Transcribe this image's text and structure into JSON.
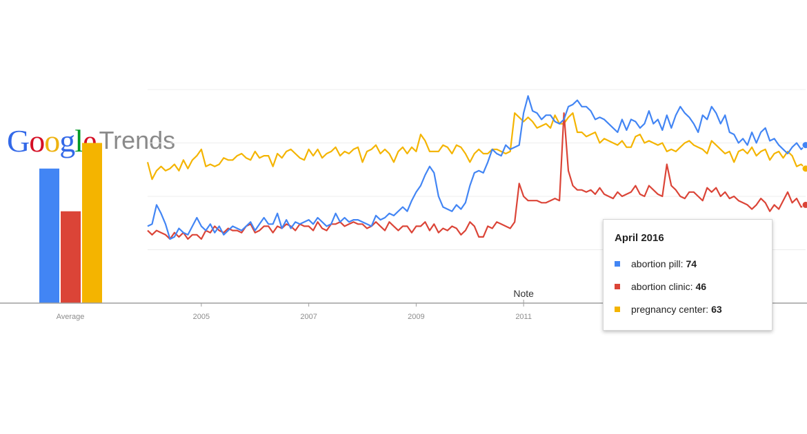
{
  "logo": {
    "letters": [
      {
        "ch": "G",
        "color": "#3369e8"
      },
      {
        "ch": "o",
        "color": "#d50f25"
      },
      {
        "ch": "o",
        "color": "#eeb211"
      },
      {
        "ch": "g",
        "color": "#3369e8"
      },
      {
        "ch": "l",
        "color": "#009925"
      },
      {
        "ch": "e",
        "color": "#d50f25"
      }
    ],
    "word": "Google",
    "product": "Trends"
  },
  "chart_data": {
    "type": "line",
    "x": [
      2004.0,
      2004.0833,
      2004.1667,
      2004.25,
      2004.3333,
      2004.4167,
      2004.5,
      2004.5833,
      2004.6667,
      2004.75,
      2004.8333,
      2004.9167,
      2005.0,
      2005.0833,
      2005.1667,
      2005.25,
      2005.3333,
      2005.4167,
      2005.5,
      2005.5833,
      2005.6667,
      2005.75,
      2005.8333,
      2005.9167,
      2006.0,
      2006.0833,
      2006.1667,
      2006.25,
      2006.3333,
      2006.4167,
      2006.5,
      2006.5833,
      2006.6667,
      2006.75,
      2006.8333,
      2006.9167,
      2007.0,
      2007.0833,
      2007.1667,
      2007.25,
      2007.3333,
      2007.4167,
      2007.5,
      2007.5833,
      2007.6667,
      2007.75,
      2007.8333,
      2007.9167,
      2008.0,
      2008.0833,
      2008.1667,
      2008.25,
      2008.3333,
      2008.4167,
      2008.5,
      2008.5833,
      2008.6667,
      2008.75,
      2008.8333,
      2008.9167,
      2009.0,
      2009.0833,
      2009.1667,
      2009.25,
      2009.3333,
      2009.4167,
      2009.5,
      2009.5833,
      2009.6667,
      2009.75,
      2009.8333,
      2009.9167,
      2010.0,
      2010.0833,
      2010.1667,
      2010.25,
      2010.3333,
      2010.4167,
      2010.5,
      2010.5833,
      2010.6667,
      2010.75,
      2010.8333,
      2010.9167,
      2011.0,
      2011.0833,
      2011.1667,
      2011.25,
      2011.3333,
      2011.4167,
      2011.5,
      2011.5833,
      2011.6667,
      2011.75,
      2011.8333,
      2011.9167,
      2012.0,
      2012.0833,
      2012.1667,
      2012.25,
      2012.3333,
      2012.4167,
      2012.5,
      2012.5833,
      2012.6667,
      2012.75,
      2012.8333,
      2012.9167,
      2013.0,
      2013.0833,
      2013.1667,
      2013.25,
      2013.3333,
      2013.4167,
      2013.5,
      2013.5833,
      2013.6667,
      2013.75,
      2013.8333,
      2013.9167,
      2014.0,
      2014.0833,
      2014.1667,
      2014.25,
      2014.3333,
      2014.4167,
      2014.5,
      2014.5833,
      2014.6667,
      2014.75,
      2014.8333,
      2014.9167,
      2015.0,
      2015.0833,
      2015.1667,
      2015.25,
      2015.3333,
      2015.4167,
      2015.5,
      2015.5833,
      2015.6667,
      2015.75,
      2015.8333,
      2015.9167,
      2016.0,
      2016.0833,
      2016.1667,
      2016.25
    ],
    "series": [
      {
        "name": "abortion pill",
        "color": "#4285f4",
        "values": [
          36,
          37,
          46,
          42,
          37,
          30,
          31,
          35,
          33,
          32,
          36,
          40,
          36,
          34,
          37,
          33,
          36,
          32,
          34,
          36,
          35,
          34,
          36,
          38,
          34,
          37,
          40,
          37,
          37,
          42,
          35,
          39,
          35,
          38,
          37,
          38,
          39,
          37,
          40,
          38,
          36,
          37,
          42,
          38,
          40,
          38,
          39,
          39,
          38,
          37,
          36,
          41,
          39,
          40,
          42,
          41,
          43,
          45,
          43,
          48,
          52,
          55,
          60,
          64,
          61,
          50,
          45,
          44,
          43,
          46,
          44,
          47,
          55,
          61,
          62,
          61,
          66,
          72,
          70,
          69,
          74,
          72,
          73,
          74,
          89,
          97,
          90,
          89,
          86,
          88,
          88,
          85,
          84,
          86,
          92,
          93,
          95,
          92,
          92,
          90,
          86,
          87,
          86,
          84,
          82,
          80,
          86,
          81,
          86,
          85,
          82,
          84,
          90,
          84,
          86,
          81,
          88,
          82,
          88,
          92,
          89,
          87,
          84,
          80,
          88,
          86,
          92,
          89,
          84,
          88,
          80,
          79,
          75,
          77,
          74,
          80,
          75,
          80,
          82,
          76,
          77,
          74,
          72,
          70,
          73,
          75,
          72,
          74
        ]
      },
      {
        "name": "abortion clinic",
        "color": "#db4437",
        "values": [
          34,
          32,
          34,
          33,
          32,
          30,
          33,
          31,
          33,
          30,
          32,
          32,
          30,
          34,
          33,
          36,
          34,
          33,
          35,
          34,
          34,
          33,
          36,
          37,
          33,
          34,
          36,
          36,
          33,
          36,
          35,
          37,
          36,
          34,
          37,
          36,
          36,
          34,
          38,
          35,
          34,
          37,
          37,
          38,
          36,
          37,
          38,
          37,
          37,
          35,
          36,
          38,
          36,
          34,
          38,
          36,
          34,
          36,
          36,
          33,
          36,
          36,
          38,
          34,
          37,
          33,
          35,
          34,
          36,
          35,
          32,
          34,
          38,
          36,
          31,
          31,
          36,
          35,
          38,
          37,
          36,
          35,
          38,
          56,
          50,
          48,
          48,
          48,
          47,
          47,
          48,
          49,
          48,
          89,
          62,
          55,
          53,
          53,
          52,
          53,
          51,
          54,
          51,
          50,
          49,
          52,
          50,
          51,
          52,
          55,
          51,
          50,
          55,
          53,
          51,
          50,
          65,
          55,
          53,
          50,
          49,
          52,
          52,
          50,
          48,
          54,
          52,
          54,
          50,
          52,
          49,
          50,
          48,
          47,
          46,
          44,
          46,
          49,
          47,
          43,
          46,
          44,
          48,
          52,
          47,
          49,
          45,
          46
        ]
      },
      {
        "name": "pregnancy center",
        "color": "#f4b400",
        "values": [
          66,
          58,
          62,
          64,
          62,
          63,
          65,
          62,
          67,
          63,
          67,
          69,
          72,
          64,
          65,
          64,
          65,
          68,
          67,
          67,
          69,
          70,
          68,
          67,
          71,
          68,
          69,
          69,
          64,
          70,
          68,
          71,
          72,
          70,
          68,
          67,
          72,
          69,
          72,
          68,
          70,
          71,
          73,
          69,
          71,
          70,
          72,
          73,
          66,
          71,
          72,
          74,
          70,
          72,
          70,
          66,
          71,
          73,
          70,
          73,
          71,
          79,
          76,
          71,
          71,
          71,
          74,
          73,
          70,
          74,
          73,
          70,
          66,
          70,
          72,
          70,
          70,
          72,
          72,
          71,
          70,
          71,
          89,
          87,
          85,
          87,
          85,
          82,
          83,
          84,
          82,
          88,
          84,
          84,
          87,
          89,
          80,
          80,
          78,
          79,
          80,
          75,
          77,
          76,
          75,
          74,
          76,
          73,
          73,
          78,
          79,
          75,
          76,
          75,
          74,
          75,
          71,
          72,
          71,
          73,
          75,
          76,
          74,
          73,
          72,
          70,
          76,
          74,
          72,
          70,
          71,
          66,
          71,
          72,
          70,
          73,
          69,
          71,
          72,
          67,
          70,
          71,
          68,
          71,
          69,
          64,
          65,
          63
        ]
      }
    ],
    "averages": [
      {
        "name": "abortion pill",
        "value": 63,
        "color": "#4285f4"
      },
      {
        "name": "abortion clinic",
        "value": 43,
        "color": "#db4437"
      },
      {
        "name": "pregnancy center",
        "value": 75,
        "color": "#f4b400"
      }
    ],
    "average_label": "Average",
    "xticks": [
      {
        "value": 2005,
        "label": "2005"
      },
      {
        "value": 2007,
        "label": "2007"
      },
      {
        "value": 2009,
        "label": "2009"
      },
      {
        "value": 2011,
        "label": "2011"
      }
    ],
    "ylim": [
      0,
      100
    ],
    "xlim": [
      2004,
      2016.25
    ],
    "grid": true,
    "annotations": [
      {
        "x": 2011.0,
        "label": "Note"
      }
    ],
    "tooltip": {
      "title": "April 2016",
      "rows": [
        {
          "label": "abortion pill:",
          "value": "74",
          "color": "#4285f4"
        },
        {
          "label": "abortion clinic:",
          "value": "46",
          "color": "#db4437"
        },
        {
          "label": "pregnancy center:",
          "value": "63",
          "color": "#f4b400"
        }
      ]
    }
  }
}
